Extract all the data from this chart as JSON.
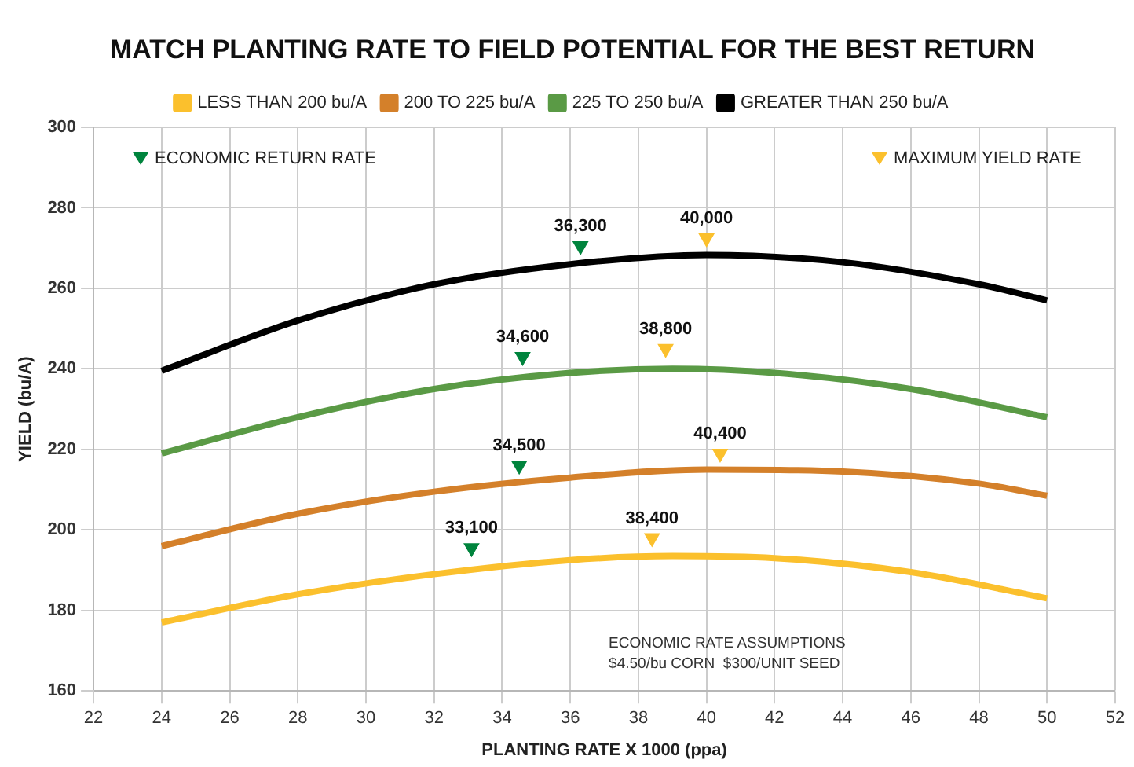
{
  "chart_data": {
    "type": "line",
    "title": "MATCH PLANTING RATE TO FIELD POTENTIAL FOR THE BEST RETURN",
    "xlabel": "PLANTING RATE X 1000 (ppa)",
    "ylabel": "YIELD (bu/A)",
    "xlim": [
      22,
      52
    ],
    "xticks": [
      22,
      24,
      26,
      28,
      30,
      32,
      34,
      36,
      38,
      40,
      42,
      44,
      46,
      48,
      50,
      52
    ],
    "ylim": [
      160,
      300
    ],
    "yticks": [
      160,
      180,
      200,
      220,
      240,
      260,
      280,
      300
    ],
    "grid": true,
    "legend": "top",
    "line_style": "solid",
    "series": [
      {
        "name": "LESS THAN 200 bu/A",
        "marker": "none",
        "color": "#fbc02d",
        "x": [
          24,
          28,
          32,
          36,
          39,
          42,
          46,
          50
        ],
        "values": [
          177,
          184,
          189,
          192.5,
          193.5,
          193,
          189.5,
          183
        ]
      },
      {
        "name": "200 TO 225 bu/A",
        "marker": "none",
        "color": "#d4802a",
        "x": [
          24,
          28,
          32,
          36,
          40,
          44,
          48,
          50
        ],
        "values": [
          196,
          204,
          209.5,
          213,
          215,
          214.5,
          211.5,
          208.5
        ]
      },
      {
        "name": "225 TO 250 bu/A",
        "marker": "none",
        "color": "#5a9a45",
        "x": [
          24,
          28,
          32,
          36,
          39,
          42,
          46,
          50
        ],
        "values": [
          219,
          228,
          235,
          239,
          240,
          239,
          235,
          228
        ]
      },
      {
        "name": "GREATER THAN 250 bu/A",
        "marker": "none",
        "color": "#000000",
        "x": [
          24,
          28,
          32,
          36,
          40,
          44,
          48,
          50
        ],
        "values": [
          239.5,
          252,
          261,
          266,
          268.3,
          266.5,
          261,
          257
        ]
      },
      {
        "name": "ECONOMIC RETURN RATE",
        "type": "scatter",
        "marker": "triangle",
        "color": "#00843d",
        "x": [
          36.3,
          34.6,
          34.5,
          33.1
        ],
        "values": [
          270.5,
          243,
          216,
          195.5
        ]
      },
      {
        "name": "MAXIMUM YIELD RATE",
        "type": "scatter",
        "marker": "triangle",
        "color": "#fbc02d",
        "x": [
          40.0,
          38.8,
          40.4,
          38.4
        ],
        "values": [
          272.5,
          245,
          219,
          198
        ]
      }
    ],
    "annotations": [
      {
        "text": "36,300",
        "x": 36.3,
        "y": 270.5
      },
      {
        "text": "34,600",
        "x": 34.6,
        "y": 243
      },
      {
        "text": "34,500",
        "x": 34.5,
        "y": 216
      },
      {
        "text": "33,100",
        "x": 33.1,
        "y": 195.5
      },
      {
        "text": "40,000",
        "x": 40.0,
        "y": 272.5
      },
      {
        "text": "38,800",
        "x": 38.8,
        "y": 245
      },
      {
        "text": "40,400",
        "x": 40.4,
        "y": 219
      },
      {
        "text": "38,400",
        "x": 38.4,
        "y": 198
      },
      "ECONOMIC RATE ASSUMPTIONS",
      "$4.50/bu CORN  $300/UNIT SEED"
    ]
  }
}
